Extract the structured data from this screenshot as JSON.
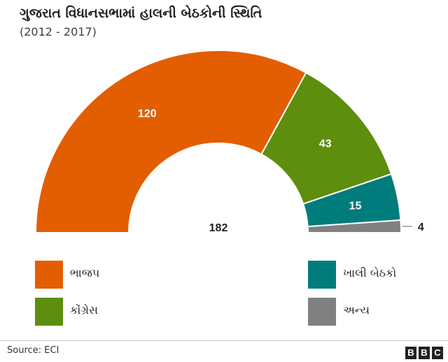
{
  "title": "ગુજરાત વિધાનસભામાં હાલની બેઠકોની સ્થિતિ",
  "subtitle": "(2012 - 2017)",
  "chart_data": {
    "type": "pie",
    "variant": "half-donut",
    "total": 182,
    "total_label": "182",
    "slices": [
      {
        "name": "ભાજપ",
        "value": 120,
        "label": "120",
        "color": "#E35E00"
      },
      {
        "name": "કોંગ્રેસ",
        "value": 43,
        "label": "43",
        "color": "#5E8E0E"
      },
      {
        "name": "ખાલી બેઠકો",
        "value": 15,
        "label": "15",
        "color": "#007C7C"
      },
      {
        "name": "અન્ય",
        "value": 4,
        "label": "4",
        "color": "#808080"
      }
    ]
  },
  "legend": [
    {
      "label": "ભાજપ",
      "color": "#E35E00"
    },
    {
      "label": "ખાલી બેઠકો",
      "color": "#007C7C"
    },
    {
      "label": "કોંગ્રેસ",
      "color": "#5E8E0E"
    },
    {
      "label": "અન્ય",
      "color": "#808080"
    }
  ],
  "footer": {
    "source": "Source: ECI",
    "logo_letters": [
      "B",
      "B",
      "C"
    ]
  }
}
